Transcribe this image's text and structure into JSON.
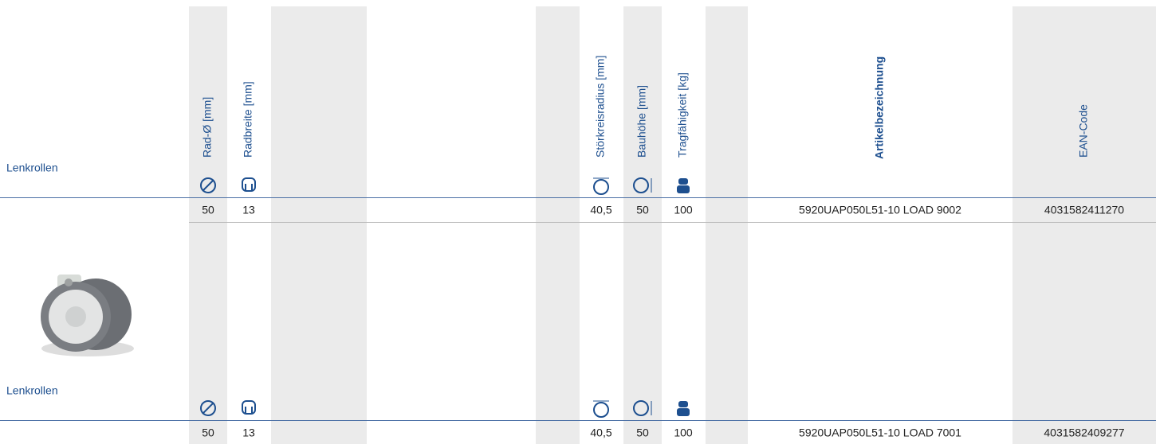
{
  "columns": [
    "Rad-Ø [mm]",
    "Radbreite [mm]",
    "Störkreisradius [mm]",
    "Bauhöhe [mm]",
    "Tragfähigkeit [kg]",
    "Artikelbezeichnung",
    "EAN-Code"
  ],
  "groups": [
    {
      "label": "Lenkrollen",
      "row": [
        "50",
        "13",
        "40,5",
        "50",
        "100",
        "5920UAP050L51-10 LOAD 9002",
        "4031582411270"
      ]
    },
    {
      "label": "Lenkrollen",
      "row": [
        "50",
        "13",
        "40,5",
        "50",
        "100",
        "5920UAP050L51-10 LOAD 7001",
        "4031582409277"
      ]
    }
  ]
}
